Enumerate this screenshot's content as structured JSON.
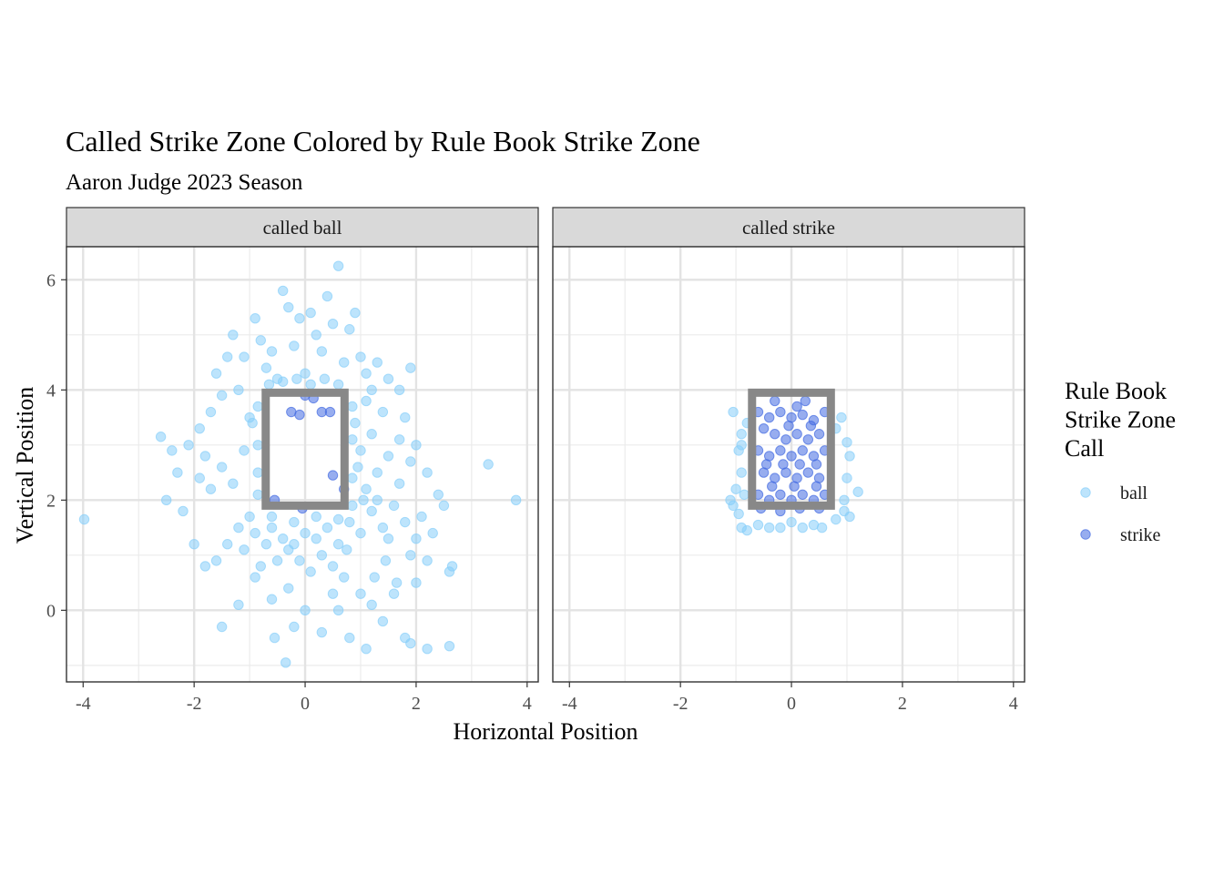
{
  "chart_data": {
    "type": "scatter",
    "title": "Called Strike Zone Colored by Rule Book Strike Zone",
    "subtitle": "Aaron Judge 2023 Season",
    "xlabel": "Horizontal Position",
    "ylabel": "Vertical Position",
    "xlim": [
      -4.3,
      4.2
    ],
    "ylim": [
      -1.3,
      6.6
    ],
    "x_ticks": [
      -4,
      -2,
      0,
      2,
      4
    ],
    "y_ticks": [
      0,
      2,
      4,
      6
    ],
    "x_tick_labels": [
      "-4",
      "-2",
      "0",
      "2",
      "4"
    ],
    "y_tick_labels": [
      "0",
      "2",
      "4",
      "6"
    ],
    "grid": true,
    "legend": {
      "title": "Rule Book\nStrike Zone\nCall",
      "placement": "right",
      "entries": [
        {
          "label": "ball",
          "color": "#87cefa"
        },
        {
          "label": "strike",
          "color": "#4169e1"
        }
      ]
    },
    "strike_zone": {
      "x": [
        -0.71,
        0.71
      ],
      "y": [
        1.9,
        3.95
      ],
      "color": "#888888"
    },
    "facets": [
      {
        "label": "called ball",
        "series": [
          {
            "name": "ball",
            "color": "#87cefa",
            "points": [
              [
                -3.98,
                1.65
              ],
              [
                -2.6,
                3.15
              ],
              [
                -2.5,
                2.0
              ],
              [
                -2.3,
                2.5
              ],
              [
                -2.2,
                1.8
              ],
              [
                -2.0,
                1.2
              ],
              [
                -1.9,
                3.3
              ],
              [
                -1.8,
                2.8
              ],
              [
                -1.7,
                3.6
              ],
              [
                -1.6,
                4.3
              ],
              [
                -1.5,
                3.9
              ],
              [
                -1.4,
                4.6
              ],
              [
                -1.3,
                5.0
              ],
              [
                -1.2,
                4.0
              ],
              [
                -1.1,
                4.6
              ],
              [
                -1.0,
                3.5
              ],
              [
                -0.9,
                5.3
              ],
              [
                -0.8,
                4.9
              ],
              [
                -0.7,
                4.4
              ],
              [
                -0.6,
                4.7
              ],
              [
                -0.5,
                4.2
              ],
              [
                -0.4,
                5.8
              ],
              [
                -0.3,
                5.5
              ],
              [
                -0.2,
                4.8
              ],
              [
                -0.1,
                5.3
              ],
              [
                0.0,
                4.3
              ],
              [
                0.1,
                5.4
              ],
              [
                0.2,
                5.0
              ],
              [
                0.3,
                4.7
              ],
              [
                0.4,
                5.7
              ],
              [
                0.5,
                5.2
              ],
              [
                0.6,
                6.25
              ],
              [
                0.7,
                4.5
              ],
              [
                0.8,
                5.1
              ],
              [
                0.9,
                5.4
              ],
              [
                1.0,
                4.6
              ],
              [
                1.1,
                4.3
              ],
              [
                1.2,
                4.0
              ],
              [
                1.3,
                4.5
              ],
              [
                1.5,
                4.2
              ],
              [
                1.7,
                4.0
              ],
              [
                1.9,
                4.4
              ],
              [
                1.8,
                3.5
              ],
              [
                2.0,
                3.0
              ],
              [
                2.2,
                2.5
              ],
              [
                2.5,
                1.9
              ],
              [
                3.3,
                2.65
              ],
              [
                3.8,
                2.0
              ],
              [
                -2.4,
                2.9
              ],
              [
                -2.1,
                3.0
              ],
              [
                -1.9,
                2.4
              ],
              [
                -1.7,
                2.2
              ],
              [
                -1.5,
                2.6
              ],
              [
                -1.3,
                2.3
              ],
              [
                -1.1,
                2.9
              ],
              [
                -0.95,
                3.4
              ],
              [
                -0.85,
                2.1
              ],
              [
                -1.0,
                1.7
              ],
              [
                -1.2,
                1.5
              ],
              [
                -1.4,
                1.2
              ],
              [
                -1.6,
                0.9
              ],
              [
                -1.8,
                0.8
              ],
              [
                -1.5,
                -0.3
              ],
              [
                -1.2,
                0.1
              ],
              [
                -0.9,
                0.6
              ],
              [
                -0.6,
                0.2
              ],
              [
                -0.55,
                -0.5
              ],
              [
                -0.3,
                0.4
              ],
              [
                -0.2,
                -0.3
              ],
              [
                -0.35,
                -0.95
              ],
              [
                0.0,
                0.0
              ],
              [
                0.3,
                -0.4
              ],
              [
                0.5,
                0.3
              ],
              [
                0.7,
                0.6
              ],
              [
                0.8,
                -0.5
              ],
              [
                1.1,
                -0.7
              ],
              [
                1.2,
                0.1
              ],
              [
                1.4,
                -0.2
              ],
              [
                1.6,
                0.3
              ],
              [
                1.8,
                -0.5
              ],
              [
                2.0,
                0.5
              ],
              [
                2.2,
                0.9
              ],
              [
                2.6,
                0.7
              ],
              [
                2.65,
                0.8
              ],
              [
                2.6,
                -0.65
              ],
              [
                1.9,
                -0.6
              ],
              [
                2.2,
                -0.7
              ],
              [
                -0.6,
                1.5
              ],
              [
                -0.4,
                1.3
              ],
              [
                -0.2,
                1.2
              ],
              [
                0.0,
                1.4
              ],
              [
                0.2,
                1.3
              ],
              [
                0.4,
                1.5
              ],
              [
                0.6,
                1.2
              ],
              [
                0.8,
                1.6
              ],
              [
                1.0,
                1.4
              ],
              [
                1.2,
                1.8
              ],
              [
                1.4,
                1.5
              ],
              [
                1.6,
                1.9
              ],
              [
                1.8,
                1.6
              ],
              [
                2.0,
                1.3
              ],
              [
                1.1,
                2.2
              ],
              [
                1.3,
                2.5
              ],
              [
                1.5,
                2.8
              ],
              [
                1.7,
                3.1
              ],
              [
                1.9,
                2.7
              ],
              [
                1.0,
                2.9
              ],
              [
                1.2,
                3.2
              ],
              [
                1.4,
                3.6
              ],
              [
                1.1,
                3.8
              ],
              [
                0.9,
                3.4
              ],
              [
                0.95,
                2.6
              ],
              [
                1.05,
                2.0
              ],
              [
                0.85,
                1.9
              ],
              [
                0.75,
                1.1
              ],
              [
                0.5,
                0.8
              ],
              [
                0.3,
                1.0
              ],
              [
                0.1,
                0.7
              ],
              [
                -0.1,
                0.9
              ],
              [
                -0.3,
                1.1
              ],
              [
                -0.5,
                0.9
              ],
              [
                -0.7,
                1.2
              ],
              [
                -0.9,
                1.4
              ],
              [
                -1.1,
                1.1
              ],
              [
                -0.8,
                0.8
              ],
              [
                -0.65,
                4.1
              ],
              [
                -0.4,
                4.15
              ],
              [
                -0.15,
                4.2
              ],
              [
                0.1,
                4.1
              ],
              [
                0.35,
                4.2
              ],
              [
                0.6,
                4.1
              ],
              [
                -0.85,
                3.7
              ],
              [
                -0.85,
                3.0
              ],
              [
                -0.85,
                2.5
              ],
              [
                0.85,
                3.7
              ],
              [
                0.85,
                3.1
              ],
              [
                0.85,
                2.4
              ],
              [
                -0.6,
                1.7
              ],
              [
                -0.2,
                1.6
              ],
              [
                0.2,
                1.7
              ],
              [
                0.6,
                1.65
              ],
              [
                1.3,
                2.0
              ],
              [
                1.5,
                1.3
              ],
              [
                1.7,
                2.3
              ],
              [
                1.9,
                1.0
              ],
              [
                2.1,
                1.7
              ],
              [
                2.3,
                1.4
              ],
              [
                2.4,
                2.1
              ],
              [
                1.25,
                0.6
              ],
              [
                1.45,
                0.9
              ],
              [
                1.65,
                0.5
              ],
              [
                1.0,
                0.3
              ],
              [
                0.6,
                0.0
              ]
            ]
          },
          {
            "name": "strike",
            "color": "#4169e1",
            "points": [
              [
                -0.25,
                3.6
              ],
              [
                -0.1,
                3.55
              ],
              [
                0.3,
                3.6
              ],
              [
                0.45,
                3.6
              ],
              [
                0.0,
                3.9
              ],
              [
                0.15,
                3.85
              ],
              [
                -0.55,
                2.0
              ],
              [
                0.5,
                2.45
              ],
              [
                0.7,
                2.2
              ],
              [
                -0.05,
                1.85
              ]
            ]
          }
        ]
      },
      {
        "label": "called strike",
        "series": [
          {
            "name": "ball",
            "color": "#87cefa",
            "points": [
              [
                -1.05,
                3.6
              ],
              [
                -0.9,
                3.2
              ],
              [
                -0.95,
                2.9
              ],
              [
                -0.9,
                2.5
              ],
              [
                -1.0,
                2.2
              ],
              [
                -1.1,
                2.0
              ],
              [
                -0.95,
                1.75
              ],
              [
                -0.9,
                1.5
              ],
              [
                -0.8,
                1.45
              ],
              [
                -0.6,
                1.55
              ],
              [
                -0.4,
                1.5
              ],
              [
                -0.2,
                1.5
              ],
              [
                0.0,
                1.6
              ],
              [
                0.2,
                1.5
              ],
              [
                0.4,
                1.55
              ],
              [
                0.55,
                1.5
              ],
              [
                0.8,
                1.65
              ],
              [
                0.95,
                1.8
              ],
              [
                1.05,
                1.7
              ],
              [
                1.2,
                2.15
              ],
              [
                1.0,
                2.4
              ],
              [
                1.05,
                2.8
              ],
              [
                1.0,
                3.05
              ],
              [
                0.9,
                3.5
              ],
              [
                0.95,
                2.0
              ],
              [
                -1.05,
                1.9
              ],
              [
                -0.85,
                2.1
              ],
              [
                -0.8,
                3.4
              ],
              [
                -0.9,
                3.0
              ],
              [
                0.8,
                3.3
              ]
            ]
          },
          {
            "name": "strike",
            "color": "#4169e1",
            "points": [
              [
                -0.6,
                3.6
              ],
              [
                -0.4,
                3.5
              ],
              [
                -0.2,
                3.6
              ],
              [
                0.0,
                3.5
              ],
              [
                0.2,
                3.55
              ],
              [
                0.4,
                3.45
              ],
              [
                0.6,
                3.6
              ],
              [
                -0.3,
                3.8
              ],
              [
                0.1,
                3.7
              ],
              [
                0.25,
                3.8
              ],
              [
                -0.5,
                3.3
              ],
              [
                -0.3,
                3.2
              ],
              [
                -0.1,
                3.1
              ],
              [
                0.1,
                3.2
              ],
              [
                0.3,
                3.1
              ],
              [
                0.5,
                3.2
              ],
              [
                -0.6,
                2.9
              ],
              [
                -0.4,
                2.8
              ],
              [
                -0.2,
                2.9
              ],
              [
                0.0,
                2.8
              ],
              [
                0.2,
                2.9
              ],
              [
                0.4,
                2.8
              ],
              [
                0.6,
                2.9
              ],
              [
                -0.5,
                2.5
              ],
              [
                -0.3,
                2.4
              ],
              [
                -0.1,
                2.5
              ],
              [
                0.1,
                2.4
              ],
              [
                0.3,
                2.5
              ],
              [
                0.5,
                2.4
              ],
              [
                -0.6,
                2.1
              ],
              [
                -0.4,
                2.0
              ],
              [
                -0.2,
                2.1
              ],
              [
                0.0,
                2.0
              ],
              [
                0.2,
                2.1
              ],
              [
                0.4,
                2.0
              ],
              [
                0.6,
                2.1
              ],
              [
                -0.55,
                1.85
              ],
              [
                -0.2,
                1.8
              ],
              [
                0.15,
                1.85
              ],
              [
                0.5,
                1.85
              ],
              [
                -0.45,
                2.65
              ],
              [
                -0.15,
                2.65
              ],
              [
                0.15,
                2.65
              ],
              [
                0.45,
                2.65
              ],
              [
                -0.05,
                3.35
              ],
              [
                0.35,
                3.35
              ],
              [
                -0.35,
                2.25
              ],
              [
                0.05,
                2.25
              ],
              [
                0.45,
                2.25
              ]
            ]
          }
        ]
      }
    ]
  }
}
